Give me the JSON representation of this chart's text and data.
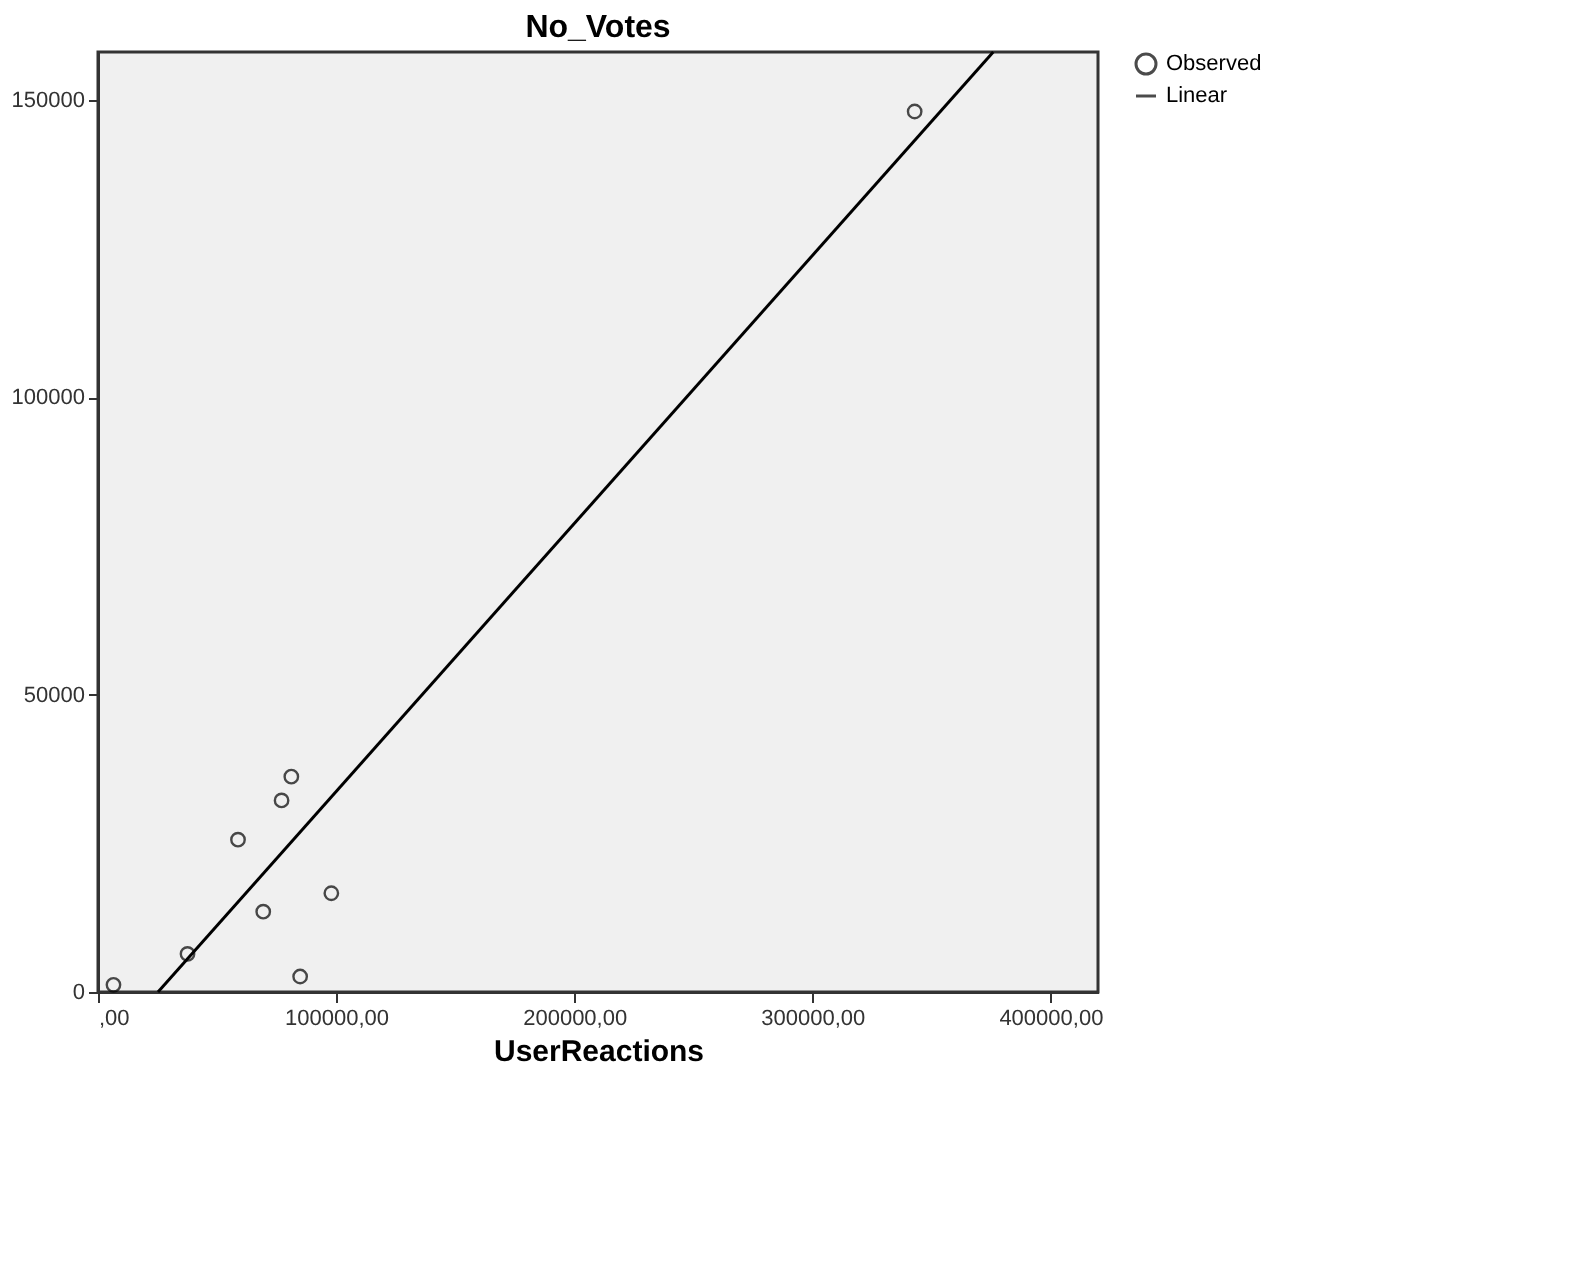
{
  "chart_data": {
    "type": "scatter",
    "title": "No_Votes",
    "xlabel": "UserReactions",
    "xlim": [
      0,
      420000
    ],
    "xticks": [
      {
        "value": 0,
        "label": ",00"
      },
      {
        "value": 100000,
        "label": "100000,00"
      },
      {
        "value": 200000,
        "label": "200000,00"
      },
      {
        "value": 300000,
        "label": "300000,00"
      },
      {
        "value": 400000,
        "label": "400000,00"
      }
    ],
    "ylim": [
      0,
      158000
    ],
    "yticks": [
      0,
      50000,
      100000,
      150000
    ],
    "series": [
      {
        "name": "Observed",
        "type": "scatter",
        "color": "#000000",
        "marker": "circle",
        "x": [
          6500,
          37600,
          58800,
          69400,
          77100,
          81200,
          84900,
          98000,
          343000
        ],
        "values": [
          1200,
          6400,
          25600,
          13500,
          32200,
          36200,
          2600,
          16600,
          148000
        ]
      },
      {
        "name": "Linear",
        "type": "line",
        "color": "#000000",
        "marker": "none",
        "line_style": "solid",
        "x": [
          25200,
          376000
        ],
        "values": [
          0,
          158000
        ]
      }
    ],
    "grid": false,
    "legend": "top right"
  }
}
